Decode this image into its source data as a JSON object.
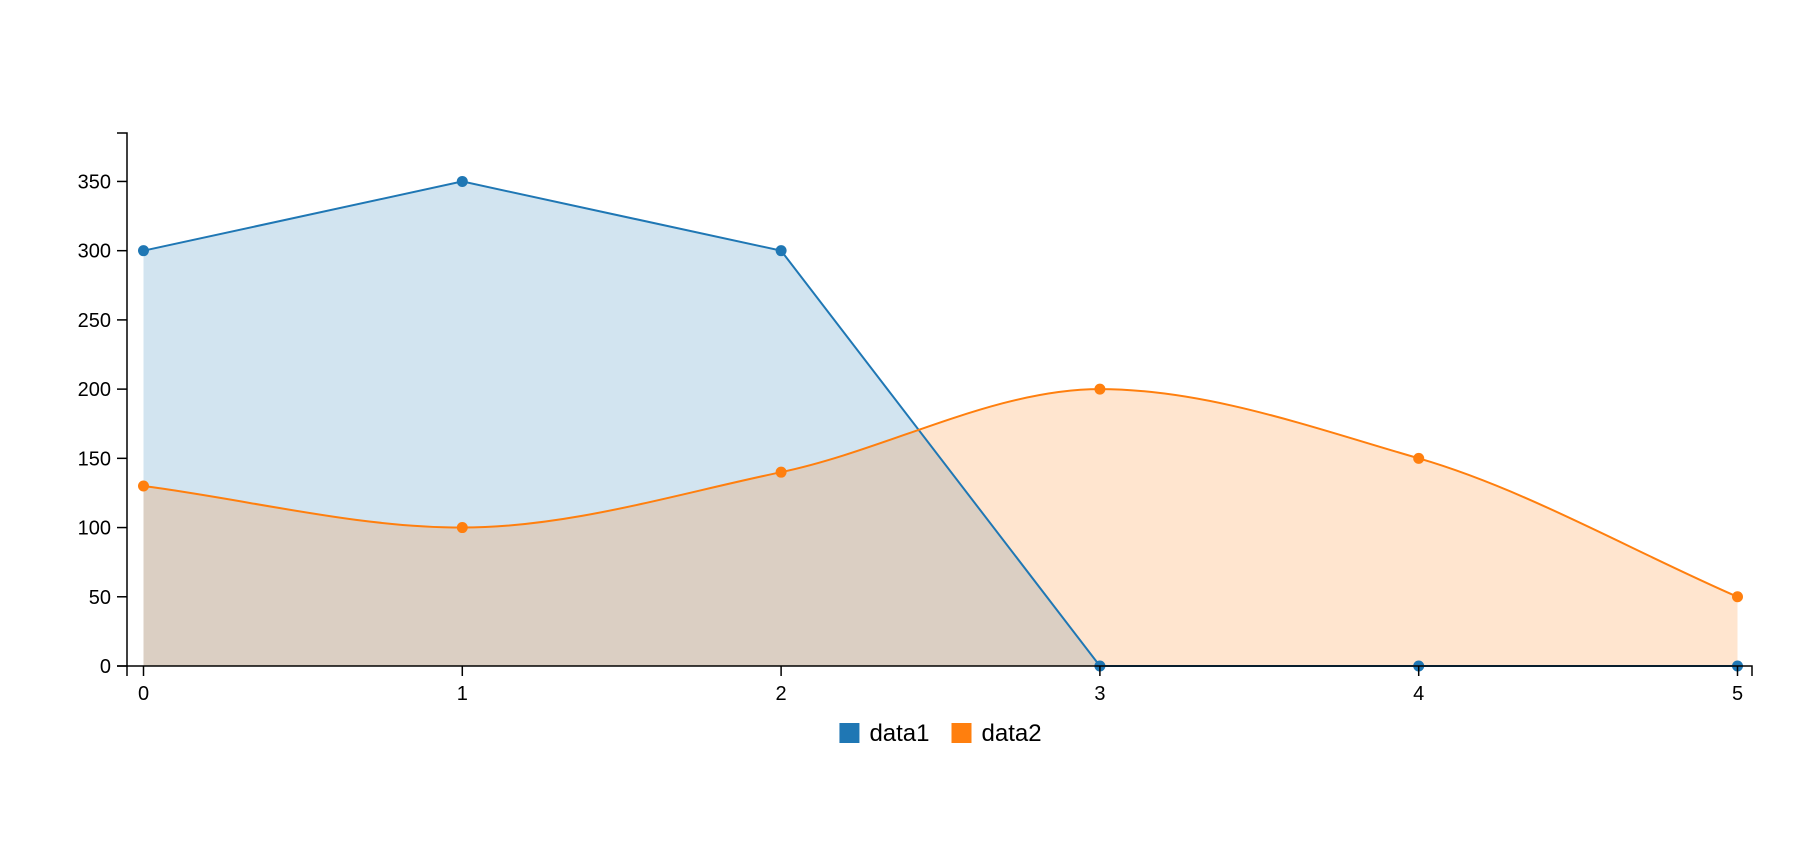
{
  "chart_data": {
    "type": "area",
    "x": [
      0,
      1,
      2,
      3,
      4,
      5
    ],
    "xlim": [
      0,
      5
    ],
    "ylim": [
      0,
      385
    ],
    "x_ticks": [
      0,
      1,
      2,
      3,
      4,
      5
    ],
    "y_ticks": [
      0,
      50,
      100,
      150,
      200,
      250,
      300,
      350
    ],
    "title": "",
    "xlabel": "",
    "ylabel": "",
    "grid": false,
    "legend_position": "bottom",
    "series": [
      {
        "name": "data1",
        "values": [
          300,
          350,
          300,
          0,
          0,
          0
        ],
        "color": "#1f77b4",
        "interpolation": "linear"
      },
      {
        "name": "data2",
        "values": [
          130,
          100,
          140,
          200,
          150,
          50
        ],
        "color": "#ff7f0e",
        "interpolation": "spline"
      }
    ]
  }
}
